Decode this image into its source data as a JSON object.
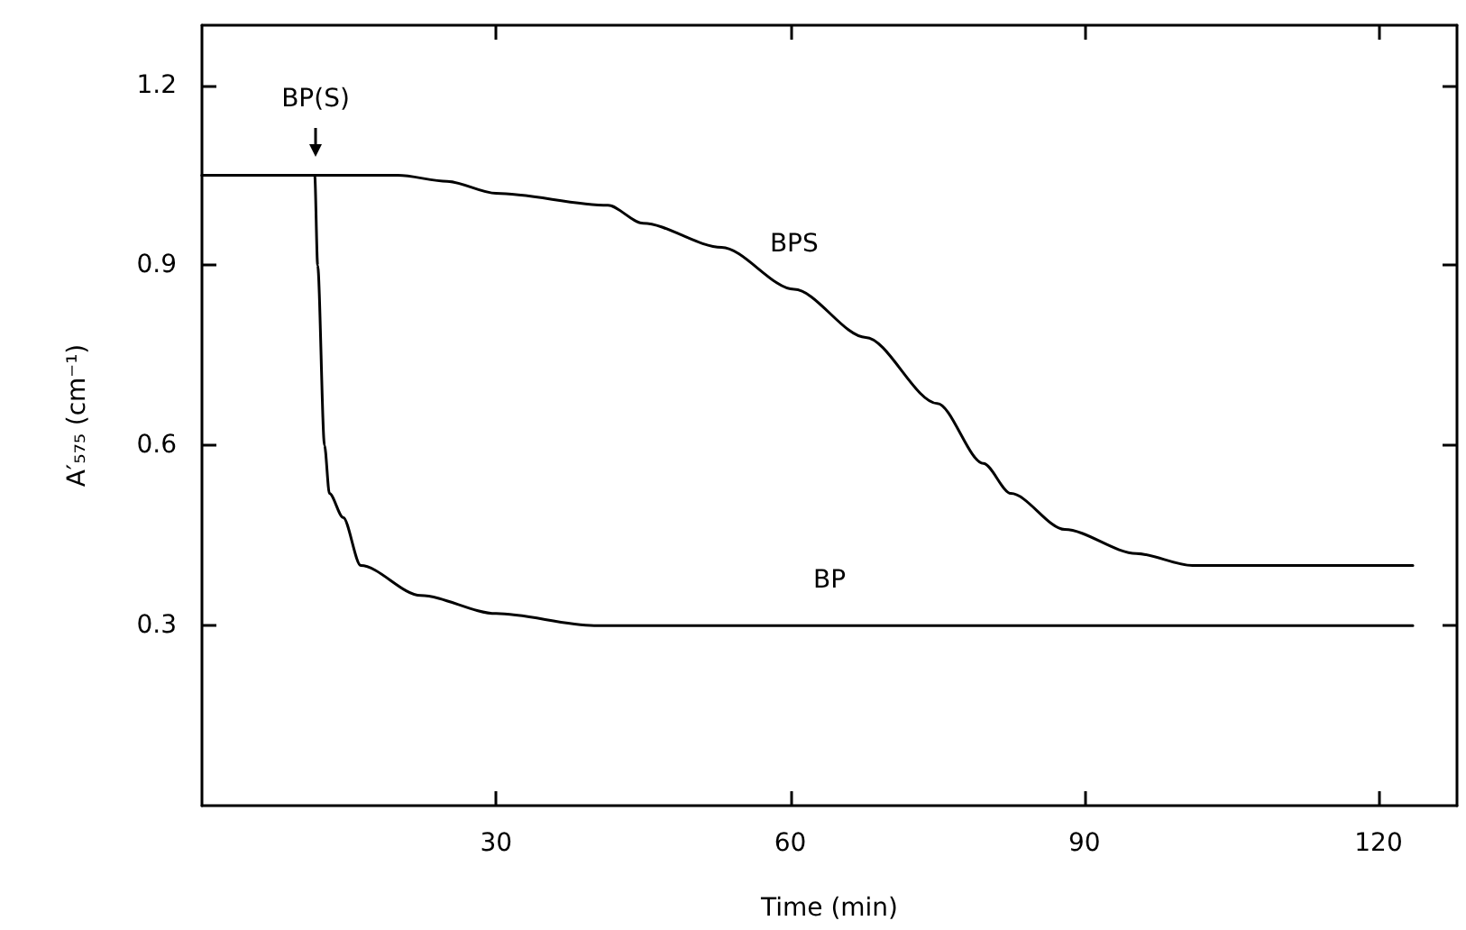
{
  "chart_data": {
    "type": "line",
    "xlabel": "Time (min)",
    "ylabel": "A′₅₇₅ (cm⁻¹)",
    "xlim": [
      0,
      128
    ],
    "xticks": [
      30,
      60,
      90,
      120
    ],
    "ylim": [
      0,
      1.3
    ],
    "yticks": [
      0.3,
      0.6,
      0.9,
      1.2
    ],
    "grid": false,
    "legend": false,
    "line_style": "solid",
    "annotations": [
      {
        "text": "BP(S)",
        "x": 11.6,
        "y": 1.05
      }
    ],
    "series": [
      {
        "name": "BPS",
        "color": "#000000",
        "x": [
          0,
          20,
          25,
          30,
          41.4,
          45,
          53,
          60.4,
          67.7,
          75,
          79.7,
          82.5,
          88,
          95.3,
          101,
          110,
          123.5
        ],
        "values": [
          1.05,
          1.05,
          1.04,
          1.02,
          1.0,
          0.97,
          0.93,
          0.86,
          0.78,
          0.67,
          0.57,
          0.52,
          0.46,
          0.42,
          0.4,
          0.4,
          0.4
        ]
      },
      {
        "name": "BP",
        "color": "#000000",
        "x": [
          0,
          11.5,
          11.8,
          12.5,
          13,
          14.4,
          16.2,
          22.3,
          30,
          40,
          64,
          123.5
        ],
        "values": [
          1.05,
          1.05,
          0.9,
          0.6,
          0.52,
          0.48,
          0.4,
          0.35,
          0.32,
          0.3,
          0.3,
          0.3
        ]
      }
    ]
  }
}
